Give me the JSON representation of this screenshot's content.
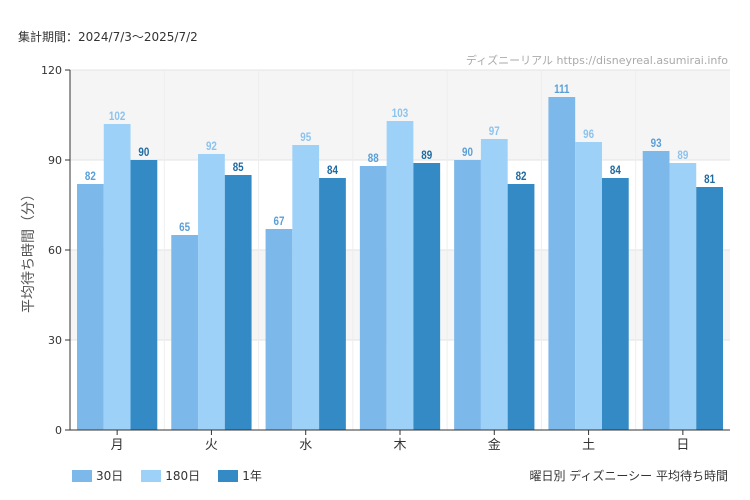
{
  "page": {
    "period_text": "集計期間：2024/7/3〜2025/7/2",
    "credit_text": "ディズニーリアル https://disneyreal.asumirai.info",
    "footer_title": "曜日別 ディズニーシー 平均待ち時間"
  },
  "chart_data": {
    "type": "bar",
    "ylabel": "平均待ち時間（分）",
    "xlabel": "",
    "ylim": [
      0,
      120
    ],
    "yticks": [
      0,
      30,
      60,
      90,
      120
    ],
    "grid": true,
    "legend_position": "bottom-left",
    "categories": [
      "月",
      "火",
      "水",
      "木",
      "金",
      "土",
      "日"
    ],
    "series": [
      {
        "name": "30日",
        "color": "#7cb8ea",
        "label_color": "#5a9fd8",
        "values": [
          82,
          65,
          67,
          88,
          90,
          111,
          93
        ]
      },
      {
        "name": "180日",
        "color": "#9dd1f7",
        "label_color": "#8cc3ee",
        "values": [
          102,
          92,
          95,
          103,
          97,
          96,
          89
        ]
      },
      {
        "name": "1年",
        "color": "#348ac4",
        "label_color": "#1f6aa0",
        "values": [
          90,
          85,
          84,
          89,
          82,
          84,
          81
        ]
      }
    ]
  }
}
